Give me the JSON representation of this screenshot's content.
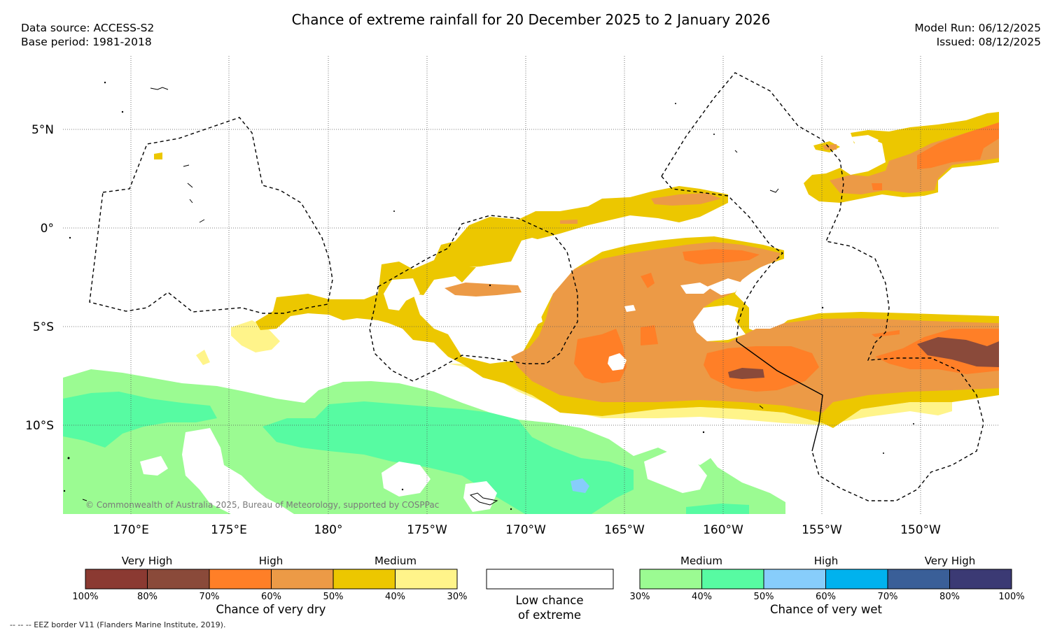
{
  "title": "Chance of extreme rainfall for 20 December 2025 to 2 January 2026",
  "header_left": {
    "data_source": "Data source: ACCESS-S2",
    "base_period": "Base period: 1981-2018"
  },
  "header_right": {
    "model_run": "Model Run: 06/12/2025",
    "issued": "Issued: 08/12/2025"
  },
  "lat_labels": [
    "5°N",
    "0°",
    "5°S",
    "10°S"
  ],
  "lon_labels": [
    "170°E",
    "175°E",
    "180°",
    "175°W",
    "170°W",
    "165°W",
    "160°W",
    "155°W",
    "150°W"
  ],
  "copyright": "© Commonwealth of Australia 2025, Bureau of Meteorology, supported by COSPPac",
  "eez_note": "-- -- -- EEZ border V11 (Flanders Marine Institute, 2019).",
  "dry_legend": {
    "categories": [
      "Very High",
      "High",
      "Medium"
    ],
    "ticks": [
      "100%",
      "80%",
      "70%",
      "60%",
      "50%",
      "40%",
      "30%"
    ],
    "colors": [
      "#8b3a32",
      "#8a4a3a",
      "#ff7f27",
      "#ec9a46",
      "#ecc700",
      "#fff48a"
    ],
    "caption": "Chance of very dry"
  },
  "neutral_legend": {
    "line1": "Low chance",
    "line2": "of extreme"
  },
  "wet_legend": {
    "categories": [
      "Medium",
      "High",
      "Very High"
    ],
    "ticks": [
      "30%",
      "40%",
      "50%",
      "60%",
      "70%",
      "80%",
      "100%"
    ],
    "colors": [
      "#9bfb92",
      "#57fba2",
      "#87cdfb",
      "#00b2ee",
      "#3a5f98",
      "#3b3a74"
    ],
    "caption": "Chance of very wet"
  }
}
